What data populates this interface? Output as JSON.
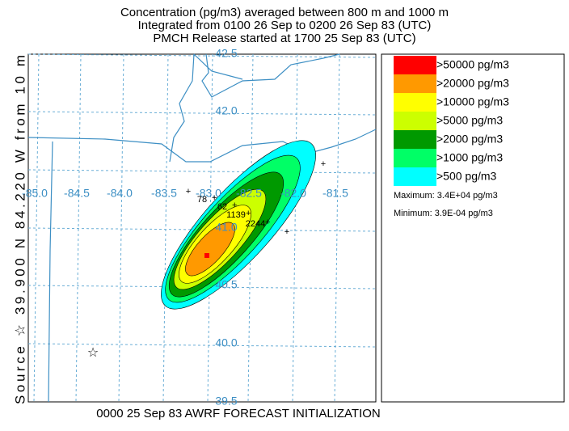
{
  "header": {
    "lines": [
      "Concentration  (pg/m3) averaged between   800 m and  1000 m",
      "Integrated from 0100 26 Sep to 0200 26 Sep 83 (UTC)",
      "PMCH Release started at 1700 25 Sep 83 (UTC)"
    ]
  },
  "side_label": "Source ☆  39.900  N  84.220  W   from  10 m",
  "footer": "0000 25 Sep 83 AWRF FORECAST INITIALIZATION",
  "legend": {
    "entries": [
      {
        "label": ">50000 pg/m3",
        "color": "#ff0000"
      },
      {
        "label": ">20000 pg/m3",
        "color": "#ff9900"
      },
      {
        "label": ">10000 pg/m3",
        "color": "#ffff00"
      },
      {
        "label": ">5000 pg/m3",
        "color": "#ccff00"
      },
      {
        "label": ">2000 pg/m3",
        "color": "#009900"
      },
      {
        "label": ">1000 pg/m3",
        "color": "#00ff66"
      },
      {
        "label": ">500 pg/m3",
        "color": "#00ffff"
      }
    ],
    "maximum": "Maximum: 3.4E+04 pg/m3",
    "minimum": "Minimum: 3.9E-04 pg/m3"
  },
  "map": {
    "lat_labels": [
      "42.5",
      "42.0",
      "41.0",
      "40.5",
      "40.0",
      "39.5"
    ],
    "lon_labels": [
      "-85.0",
      "-84.5",
      "-84.0",
      "-83.5",
      "-83.0",
      "-82.5",
      "-82.0",
      "-81.5"
    ],
    "stations": [
      "78",
      "62",
      "1139",
      "2244"
    ]
  }
}
